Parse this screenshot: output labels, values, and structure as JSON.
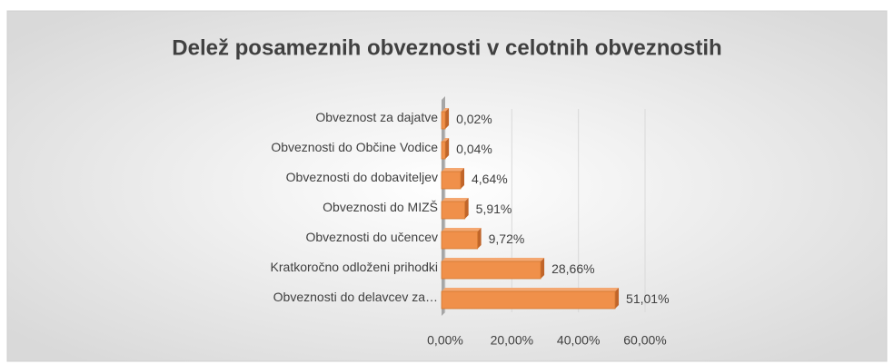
{
  "chart_data": {
    "type": "bar",
    "orientation": "horizontal",
    "title": "Delež posameznih obveznosti v celotnih obveznostih",
    "categories": [
      "Obveznost za dajatve",
      "Obveznosti do Občine Vodice",
      "Obveznosti do dobaviteljev",
      "Obveznosti do MIZŠ",
      "Obveznosti do učencev",
      "Kratkoročno odloženi prihodki",
      "Obveznosti do delavcev za…"
    ],
    "values": [
      0.02,
      0.04,
      4.64,
      5.91,
      9.72,
      28.66,
      51.01
    ],
    "value_labels": [
      "0,02%",
      "0,04%",
      "4,64%",
      "5,91%",
      "9,72%",
      "28,66%",
      "51,01%"
    ],
    "color": "#f0904a",
    "xlim": [
      0,
      60
    ],
    "xticks": [
      {
        "value": 0,
        "label": "0,00%"
      },
      {
        "value": 20,
        "label": "20,00%"
      },
      {
        "value": 40,
        "label": "40,00%"
      },
      {
        "value": 60,
        "label": "60,00%"
      }
    ],
    "grid": true
  }
}
